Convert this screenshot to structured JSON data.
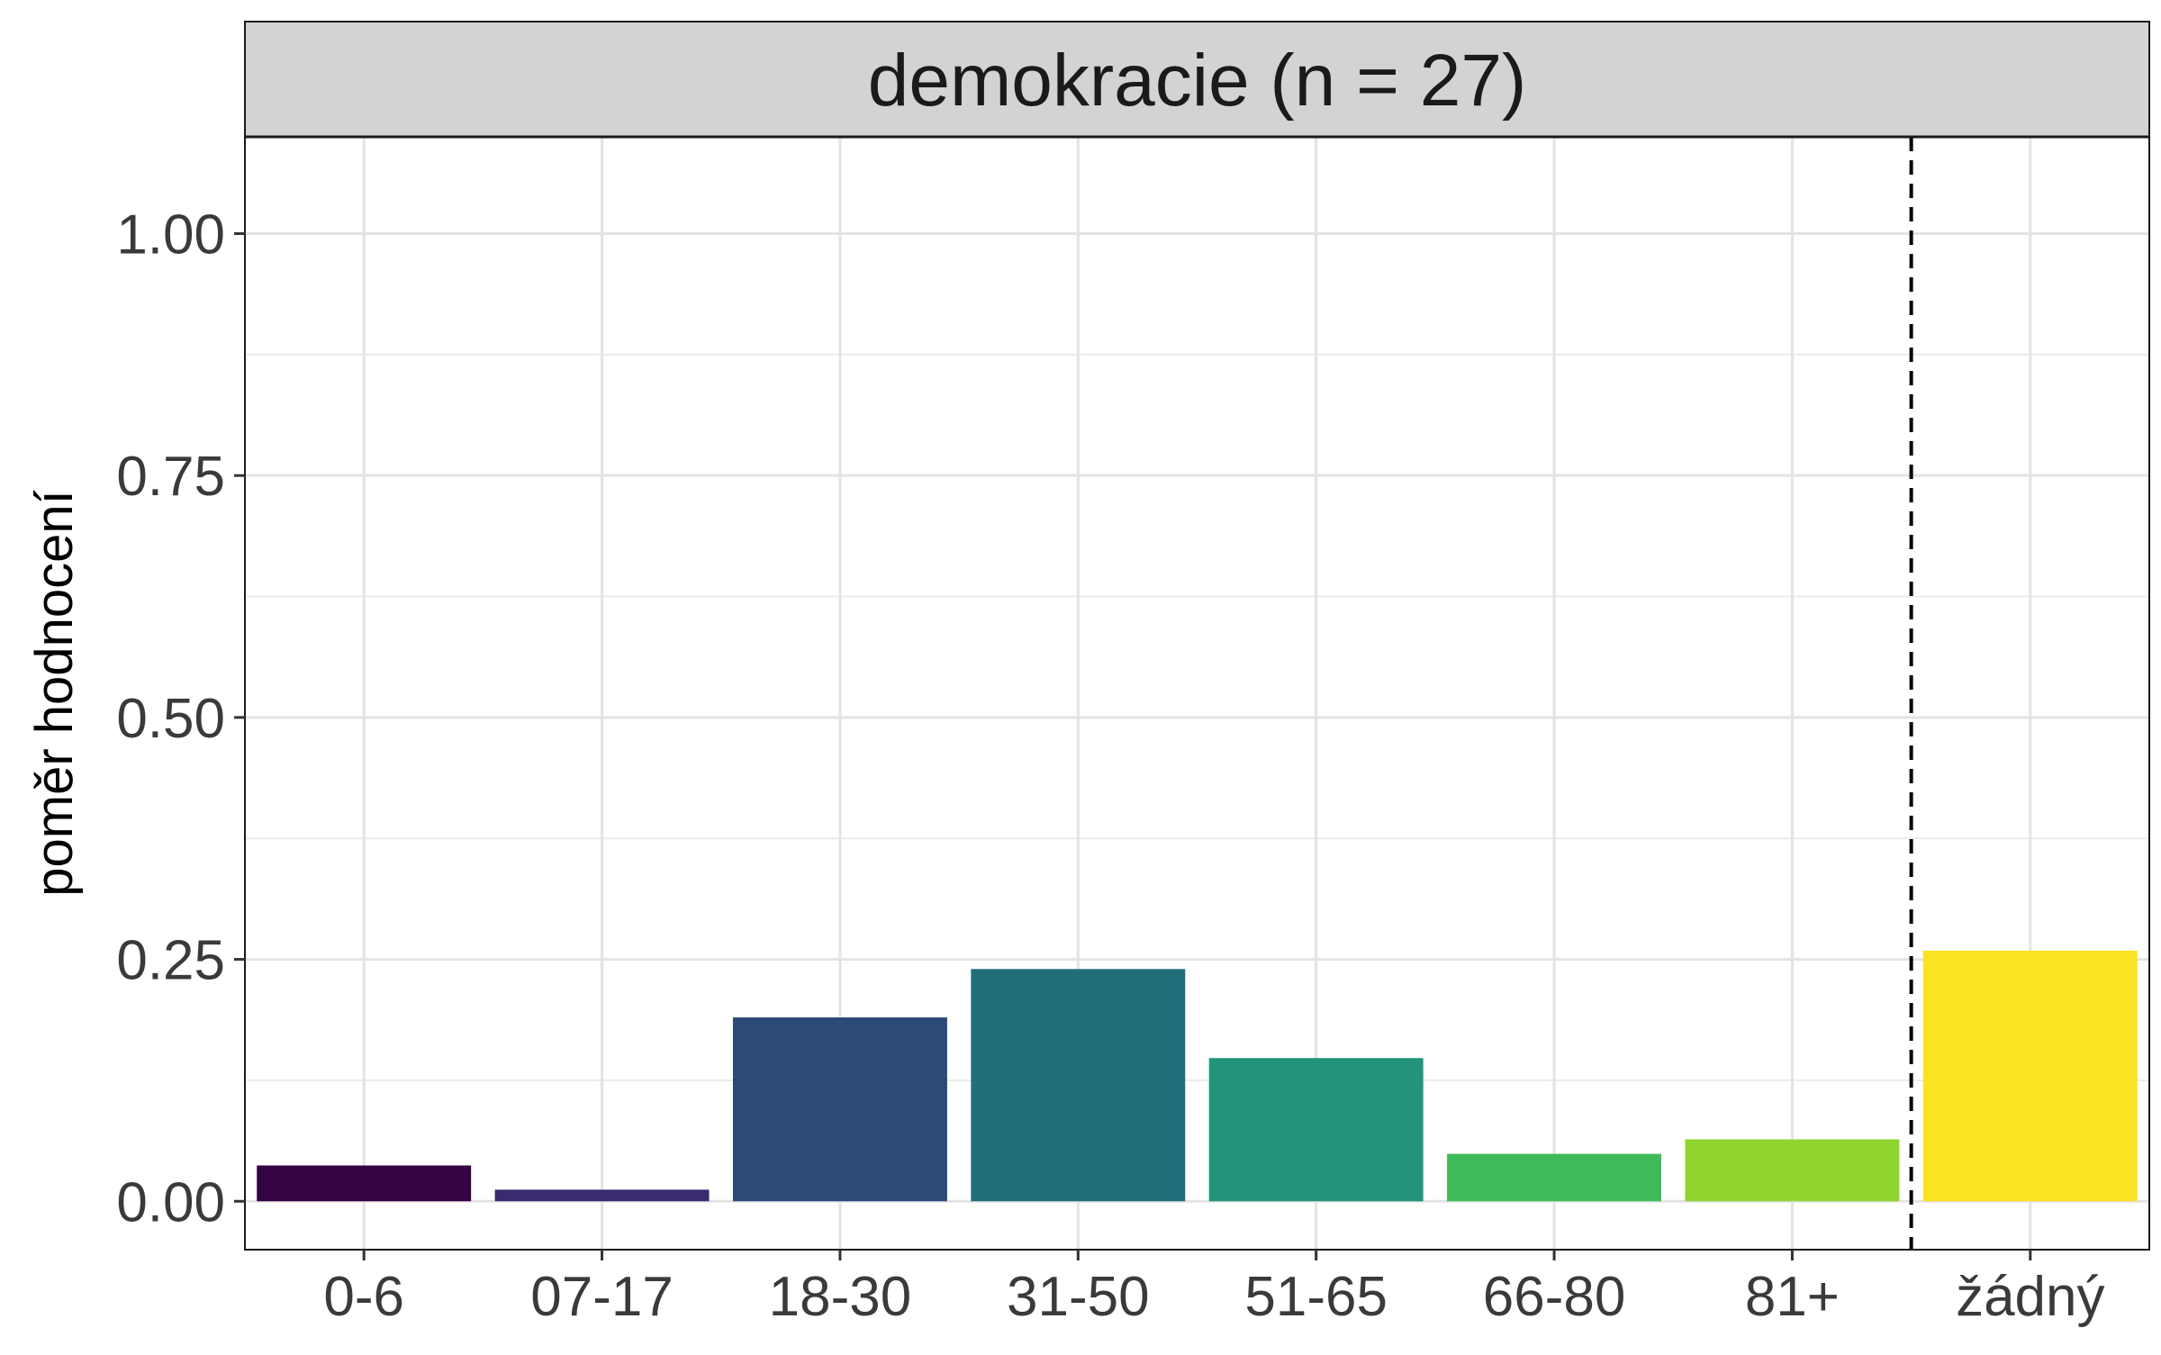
{
  "chart_data": {
    "type": "bar",
    "title": "demokracie (n = 27)",
    "xlabel": "",
    "ylabel": "poměr hodnocení",
    "ylim": [
      -0.05,
      1.1
    ],
    "yticks": [
      "0.00",
      "0.25",
      "0.50",
      "0.75",
      "1.00"
    ],
    "categories": [
      "0-6",
      "07-17",
      "18-30",
      "31-50",
      "51-65",
      "66-80",
      "81+",
      "žádný"
    ],
    "values": [
      0.037,
      0.012,
      0.19,
      0.24,
      0.148,
      0.049,
      0.064,
      0.259
    ],
    "colors": [
      "#350242",
      "#3b2a6e",
      "#2c4978",
      "#216e7b",
      "#22947a",
      "#3fba58",
      "#8fd42f",
      "#fbe322"
    ],
    "reference_line": {
      "between": [
        "81+",
        "žádný"
      ],
      "style": "dashed",
      "color": "#000000"
    },
    "grid": true,
    "legend": "none",
    "panel_strip_color": "#d3d3d3"
  }
}
